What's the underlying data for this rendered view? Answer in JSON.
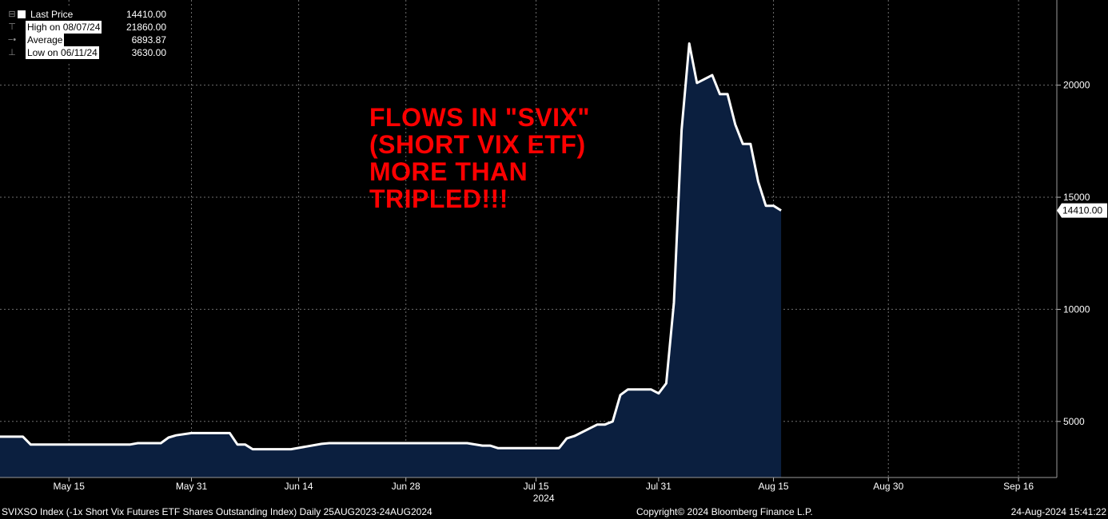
{
  "legend": {
    "last_price_label": "Last Price",
    "last_price_value": "14410.00",
    "high_label": "High on 08/07/24",
    "high_value": "21860.00",
    "average_label": "Average",
    "average_value": "6893.87",
    "low_label": "Low on 06/11/24",
    "low_value": "3630.00"
  },
  "annotation": {
    "lines": [
      "FLOWS IN \"SVIX\"",
      "(SHORT VIX ETF)",
      "MORE THAN",
      "TRIPLED!!!"
    ],
    "color": "#ff0000"
  },
  "footer": {
    "left": "SVIXSO Index (-1x Short Vix Futures ETF Shares Outstanding Index)  Daily 25AUG2023-24AUG2024",
    "center": "Copyright© 2024 Bloomberg Finance L.P.",
    "right": "24-Aug-2024 15:41:22"
  },
  "colors": {
    "background": "#000000",
    "line": "#ffffff",
    "area_fill": "#0b1f3f",
    "grid": "#6e6e6e",
    "annotation": "#ff0000"
  },
  "chart_data": {
    "type": "area",
    "title": "",
    "xlabel": "",
    "ylabel": "",
    "x_start": "2024-05-06",
    "x_end": "2024-09-21",
    "ylim": [
      2500,
      23800
    ],
    "y_ticks": [
      5000,
      10000,
      15000,
      20000
    ],
    "y_tick_labels": [
      "5000",
      "10000",
      "15000",
      "20000"
    ],
    "x_ticks": [
      "2024-05-15",
      "2024-05-31",
      "2024-06-14",
      "2024-06-28",
      "2024-07-15",
      "2024-07-31",
      "2024-08-15",
      "2024-08-30",
      "2024-09-16"
    ],
    "x_tick_labels": [
      "May 15",
      "May 31",
      "Jun 14",
      "Jun 28",
      "Jul 15",
      "Jul 31",
      "Aug 15",
      "Aug 30",
      "Sep 16"
    ],
    "year_label": "2024",
    "year_label_date": "2024-07-16",
    "grid": true,
    "last_value_label": "14410.00",
    "series": [
      {
        "name": "Last Price",
        "points": [
          [
            "2024-05-06",
            4320
          ],
          [
            "2024-05-09",
            4320
          ],
          [
            "2024-05-10",
            3970
          ],
          [
            "2024-05-23",
            3970
          ],
          [
            "2024-05-24",
            4030
          ],
          [
            "2024-05-27",
            4030
          ],
          [
            "2024-05-28",
            4280
          ],
          [
            "2024-05-29",
            4380
          ],
          [
            "2024-05-31",
            4480
          ],
          [
            "2024-06-05",
            4480
          ],
          [
            "2024-06-06",
            3970
          ],
          [
            "2024-06-07",
            3970
          ],
          [
            "2024-06-08",
            3760
          ],
          [
            "2024-06-13",
            3760
          ],
          [
            "2024-06-17",
            4000
          ],
          [
            "2024-06-18",
            4030
          ],
          [
            "2024-07-06",
            4030
          ],
          [
            "2024-07-08",
            3920
          ],
          [
            "2024-07-09",
            3920
          ],
          [
            "2024-07-10",
            3810
          ],
          [
            "2024-07-18",
            3810
          ],
          [
            "2024-07-19",
            4240
          ],
          [
            "2024-07-20",
            4350
          ],
          [
            "2024-07-23",
            4860
          ],
          [
            "2024-07-24",
            4860
          ],
          [
            "2024-07-25",
            5000
          ],
          [
            "2024-07-26",
            6180
          ],
          [
            "2024-07-27",
            6430
          ],
          [
            "2024-07-30",
            6430
          ],
          [
            "2024-07-31",
            6250
          ],
          [
            "2024-08-01",
            6700
          ],
          [
            "2024-08-02",
            10300
          ],
          [
            "2024-08-03",
            18000
          ],
          [
            "2024-08-04",
            21860
          ],
          [
            "2024-08-05",
            20100
          ],
          [
            "2024-08-07",
            20450
          ],
          [
            "2024-08-08",
            19600
          ],
          [
            "2024-08-09",
            19600
          ],
          [
            "2024-08-10",
            18250
          ],
          [
            "2024-08-11",
            17380
          ],
          [
            "2024-08-12",
            17380
          ],
          [
            "2024-08-13",
            15700
          ],
          [
            "2024-08-14",
            14620
          ],
          [
            "2024-08-15",
            14620
          ],
          [
            "2024-08-16",
            14410
          ]
        ]
      }
    ]
  }
}
